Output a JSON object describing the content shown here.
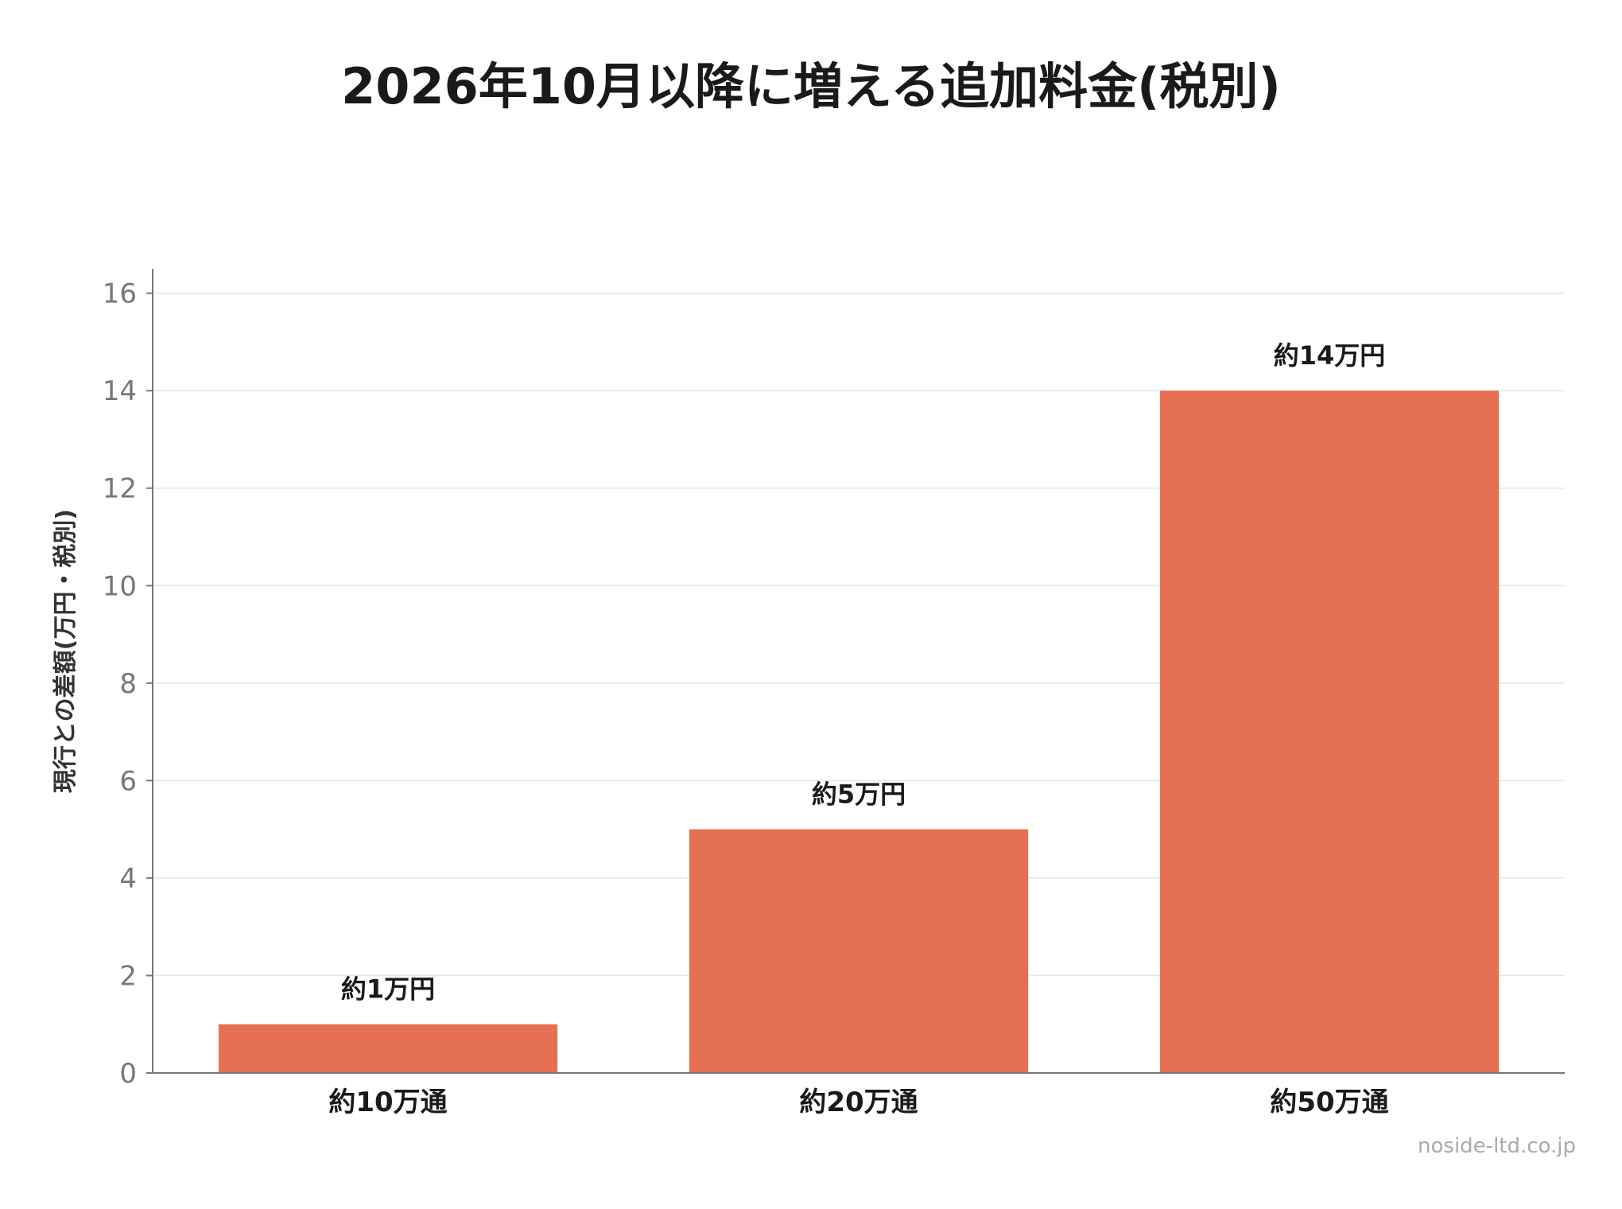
{
  "chart_data": {
    "type": "bar",
    "title": "2026年10月以降に増える追加料金(税別)",
    "xlabel": "",
    "ylabel": "現行との差額(万円・税別)",
    "categories": [
      "約10万通",
      "約20万通",
      "約50万通"
    ],
    "values": [
      1,
      5,
      14
    ],
    "data_labels": [
      "約1万円",
      "約5万円",
      "約14万円"
    ],
    "ylim": [
      0,
      16.5
    ],
    "yticks": [
      0,
      2,
      4,
      6,
      8,
      10,
      12,
      14,
      16
    ],
    "grid": true,
    "legend": "none"
  },
  "colors": {
    "bar": "#e56f53",
    "grid": "#e6e6e6",
    "axis": "#777777",
    "title": "#1a1a1a"
  },
  "watermark": "noside-ltd.co.jp"
}
